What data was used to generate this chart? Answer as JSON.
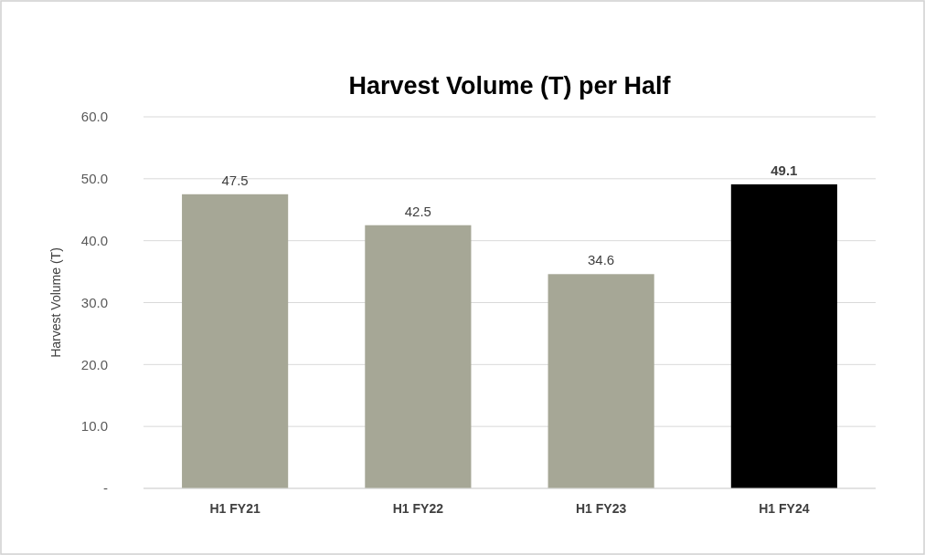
{
  "chart_data": {
    "type": "bar",
    "title": "Harvest Volume (T) per Half",
    "ylabel": "Harvest Volume (T)",
    "categories": [
      "H1 FY21",
      "H1 FY22",
      "H1 FY23",
      "H1 FY24"
    ],
    "values": [
      47.5,
      42.5,
      34.6,
      49.1
    ],
    "colors": [
      "#a6a796",
      "#a6a796",
      "#a6a796",
      "#000000"
    ],
    "ylim": [
      0,
      60
    ],
    "yticks": [
      {
        "value": 0,
        "label": "-"
      },
      {
        "value": 10,
        "label": "10.0"
      },
      {
        "value": 20,
        "label": "20.0"
      },
      {
        "value": 30,
        "label": "30.0"
      },
      {
        "value": 40,
        "label": "40.0"
      },
      {
        "value": 50,
        "label": "50.0"
      },
      {
        "value": 60,
        "label": "60.0"
      }
    ],
    "grid": "y",
    "data_labels": true
  }
}
